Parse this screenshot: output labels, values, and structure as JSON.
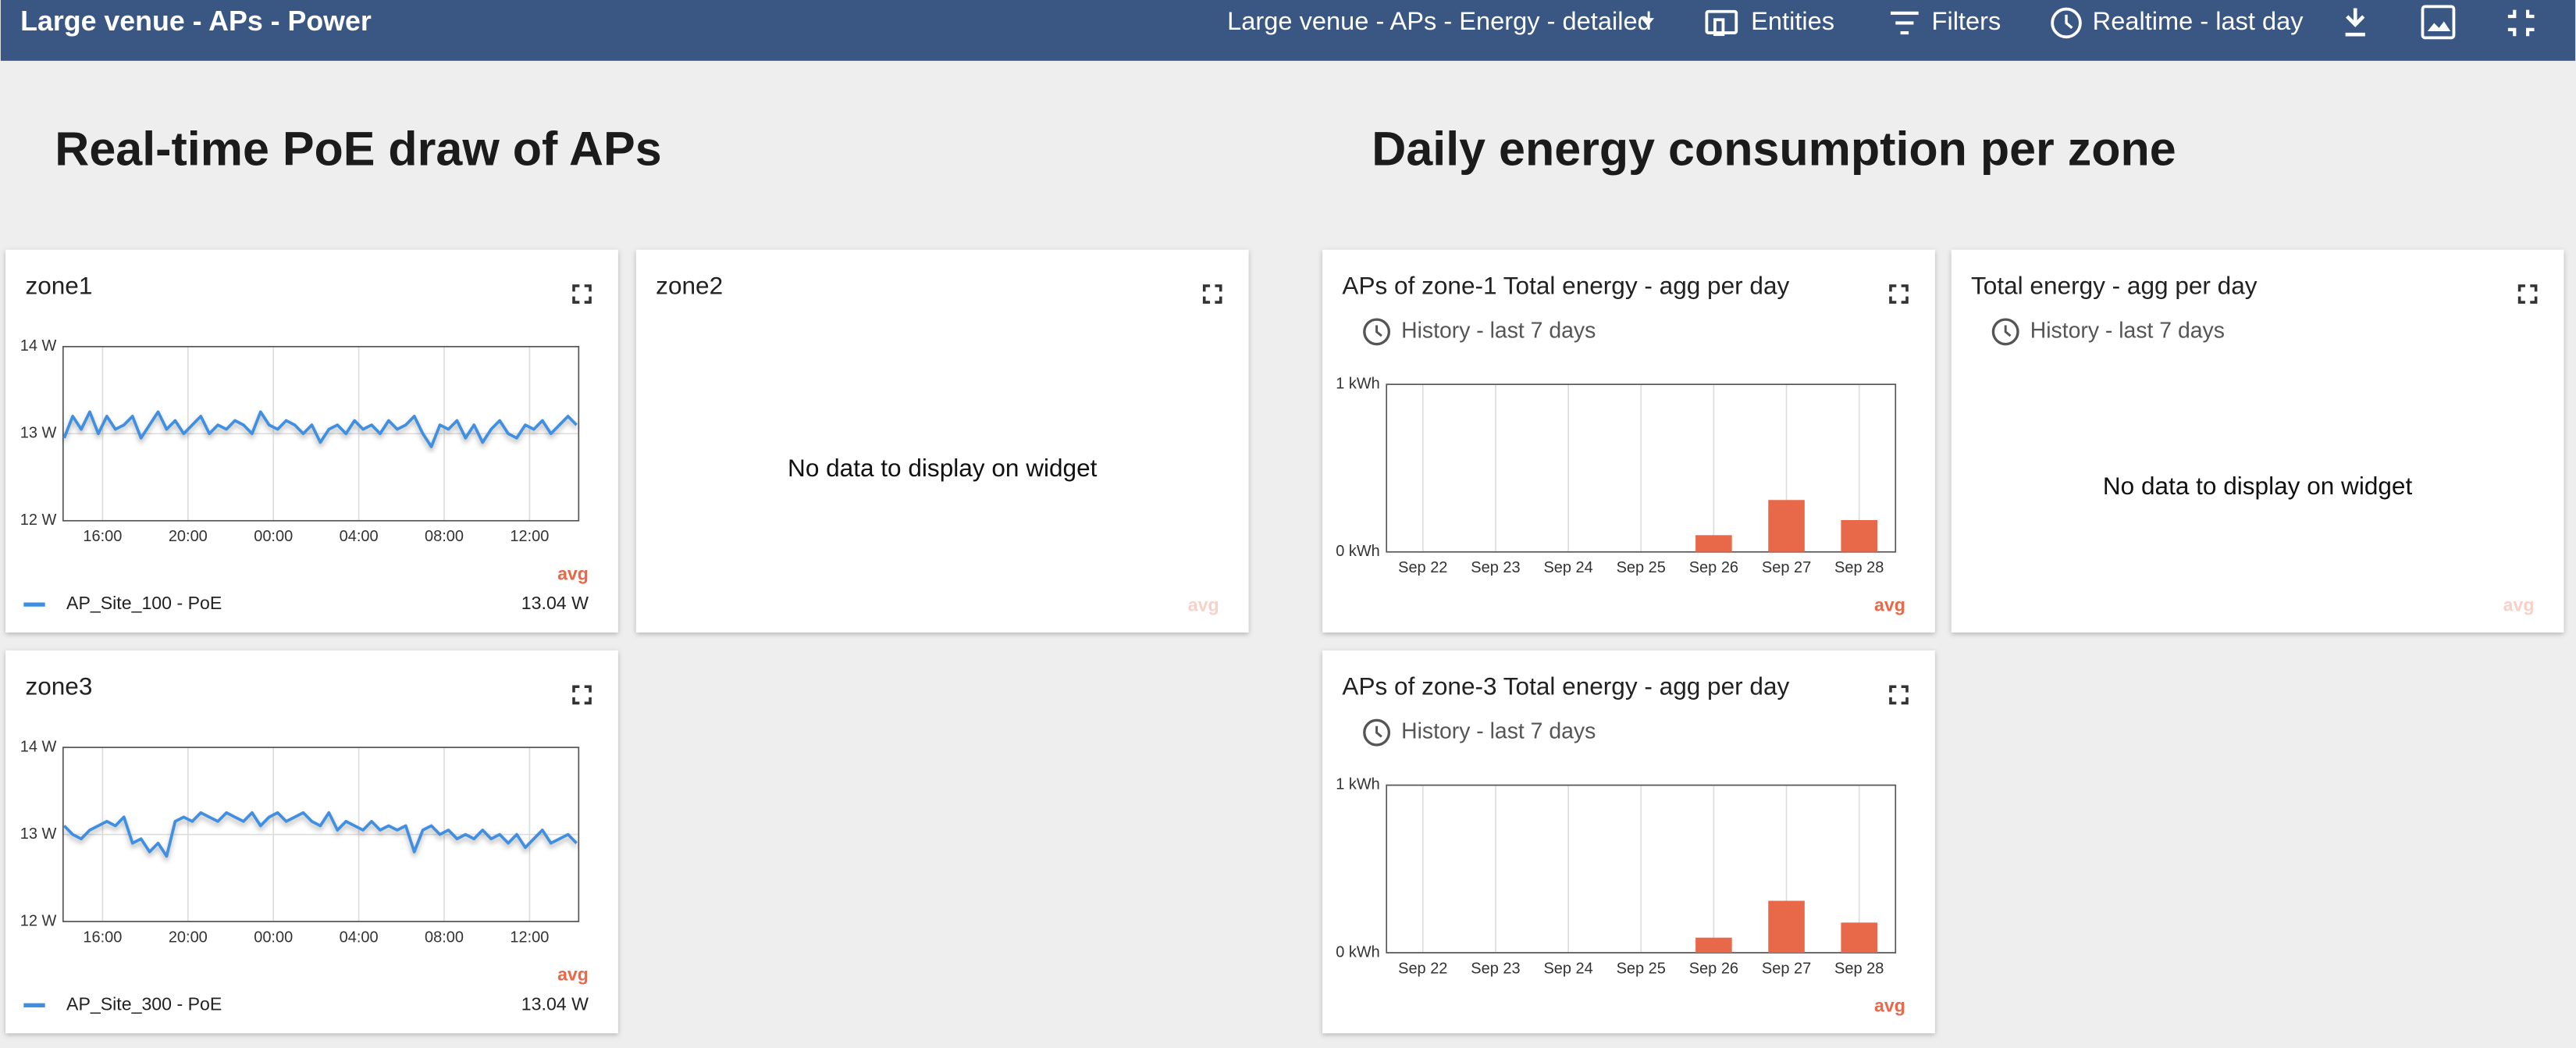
{
  "header": {
    "title": "Large venue - APs - Power",
    "state": "Large venue - APs - Energy - detailed",
    "actions": [
      "Entities",
      "Filters",
      "Realtime - last day"
    ]
  },
  "sections": [
    "Real-time PoE draw of APs",
    "Daily energy consumption per zone"
  ],
  "widgets": [
    {
      "title": "zone1",
      "legend_header": "avg",
      "chart_data": {
        "type": "line",
        "x": [
          14.2,
          14.6,
          15,
          15.4,
          15.8,
          16.2,
          16.6,
          17,
          17.4,
          17.8,
          18.2,
          18.6,
          19,
          19.4,
          19.8,
          20.2,
          20.6,
          21,
          21.4,
          21.8,
          22.2,
          22.6,
          23,
          23.4,
          23.8,
          24.2,
          24.6,
          25,
          25.4,
          25.8,
          26.2,
          26.6,
          27,
          27.4,
          27.8,
          28.2,
          28.6,
          29,
          29.4,
          29.8,
          30.2,
          30.6,
          31,
          31.4,
          31.8,
          32.2,
          32.6,
          33,
          33.4,
          33.8,
          34.2,
          34.6,
          35,
          35.4,
          35.8,
          36.2,
          36.6,
          37,
          37.4,
          37.8,
          38.2
        ],
        "xlim": [
          14.15,
          38.3
        ],
        "xticks": [
          {
            "value": 16,
            "label": "16:00"
          },
          {
            "value": 20,
            "label": "20:00"
          },
          {
            "value": 24,
            "label": "00:00"
          },
          {
            "value": 28,
            "label": "04:00"
          },
          {
            "value": 32,
            "label": "08:00"
          },
          {
            "value": 36,
            "label": "12:00"
          }
        ],
        "ylim": [
          12,
          14
        ],
        "yticks": [
          {
            "value": 12,
            "label": "12 W"
          },
          {
            "value": 13,
            "label": "13 W"
          },
          {
            "value": 14,
            "label": "14 W"
          }
        ],
        "grid": true,
        "series": [
          {
            "name": "AP_Site_100 - PoE",
            "color": "#3f8fe0",
            "legend_value": "13.04 W",
            "values": [
              12.95,
              13.2,
              13.05,
              13.25,
              13.0,
              13.2,
              13.05,
              13.1,
              13.2,
              12.95,
              13.1,
              13.25,
              13.05,
              13.15,
              13.0,
              13.1,
              13.2,
              13.0,
              13.1,
              13.05,
              13.15,
              13.1,
              13.0,
              13.25,
              13.1,
              13.05,
              13.15,
              13.1,
              13.0,
              13.1,
              12.9,
              13.05,
              13.1,
              13.0,
              13.15,
              13.05,
              13.1,
              13.0,
              13.15,
              13.05,
              13.1,
              13.2,
              13.0,
              12.85,
              13.1,
              13.05,
              13.15,
              12.95,
              13.1,
              12.9,
              13.05,
              13.15,
              13.0,
              12.95,
              13.1,
              13.05,
              13.15,
              13.0,
              13.1,
              13.2,
              13.1
            ]
          }
        ]
      }
    },
    {
      "title": "zone2",
      "legend_header": "avg",
      "message": "No data to display on widget"
    },
    {
      "title": "zone3",
      "legend_header": "avg",
      "chart_data": {
        "type": "line",
        "x": [
          14.2,
          14.6,
          15,
          15.4,
          15.8,
          16.2,
          16.6,
          17,
          17.4,
          17.8,
          18.2,
          18.6,
          19,
          19.4,
          19.8,
          20.2,
          20.6,
          21,
          21.4,
          21.8,
          22.2,
          22.6,
          23,
          23.4,
          23.8,
          24.2,
          24.6,
          25,
          25.4,
          25.8,
          26.2,
          26.6,
          27,
          27.4,
          27.8,
          28.2,
          28.6,
          29,
          29.4,
          29.8,
          30.2,
          30.6,
          31,
          31.4,
          31.8,
          32.2,
          32.6,
          33,
          33.4,
          33.8,
          34.2,
          34.6,
          35,
          35.4,
          35.8,
          36.2,
          36.6,
          37,
          37.4,
          37.8,
          38.2
        ],
        "xlim": [
          14.15,
          38.3
        ],
        "xticks": [
          {
            "value": 16,
            "label": "16:00"
          },
          {
            "value": 20,
            "label": "20:00"
          },
          {
            "value": 24,
            "label": "00:00"
          },
          {
            "value": 28,
            "label": "04:00"
          },
          {
            "value": 32,
            "label": "08:00"
          },
          {
            "value": 36,
            "label": "12:00"
          }
        ],
        "ylim": [
          12,
          14
        ],
        "yticks": [
          {
            "value": 12,
            "label": "12 W"
          },
          {
            "value": 13,
            "label": "13 W"
          },
          {
            "value": 14,
            "label": "14 W"
          }
        ],
        "grid": true,
        "series": [
          {
            "name": "AP_Site_300 - PoE",
            "color": "#3f8fe0",
            "legend_value": "13.04 W",
            "values": [
              13.1,
              13.0,
              12.95,
              13.05,
              13.1,
              13.15,
              13.1,
              13.2,
              12.9,
              12.95,
              12.8,
              12.9,
              12.75,
              13.15,
              13.2,
              13.15,
              13.25,
              13.2,
              13.15,
              13.25,
              13.2,
              13.15,
              13.25,
              13.1,
              13.2,
              13.25,
              13.15,
              13.2,
              13.25,
              13.15,
              13.1,
              13.25,
              13.05,
              13.15,
              13.1,
              13.05,
              13.15,
              13.05,
              13.1,
              13.05,
              13.1,
              12.8,
              13.05,
              13.1,
              13.0,
              13.05,
              12.95,
              13.0,
              12.95,
              13.05,
              12.95,
              13.0,
              12.9,
              13.0,
              12.85,
              12.95,
              13.05,
              12.9,
              12.95,
              13.0,
              12.9
            ]
          }
        ]
      }
    },
    {
      "title": "APs of zone-1 Total energy - agg per day",
      "subtitle": "History - last 7 days",
      "legend_header": "avg",
      "chart_data": {
        "type": "bar",
        "categories": [
          "Sep 22",
          "Sep 23",
          "Sep 24",
          "Sep 25",
          "Sep 26",
          "Sep 27",
          "Sep 28"
        ],
        "values": [
          0,
          0,
          0,
          0,
          0.1,
          0.31,
          0.19
        ],
        "color": "#e8694a",
        "ylim": [
          0,
          1
        ],
        "yticks": [
          {
            "value": 0,
            "label": "0 kWh"
          },
          {
            "value": 1,
            "label": "1 kWh"
          }
        ],
        "grid": true
      }
    },
    {
      "title": "Total energy - agg per day",
      "subtitle": "History - last 7 days",
      "legend_header": "avg",
      "message": "No data to display on widget"
    },
    {
      "title": "APs of zone-3 Total energy - agg per day",
      "subtitle": "History - last 7 days",
      "legend_header": "avg",
      "chart_data": {
        "type": "bar",
        "categories": [
          "Sep 22",
          "Sep 23",
          "Sep 24",
          "Sep 25",
          "Sep 26",
          "Sep 27",
          "Sep 28"
        ],
        "values": [
          0,
          0,
          0,
          0,
          0.09,
          0.31,
          0.18
        ],
        "color": "#e8694a",
        "ylim": [
          0,
          1
        ],
        "yticks": [
          {
            "value": 0,
            "label": "0 kWh"
          },
          {
            "value": 1,
            "label": "1 kWh"
          }
        ],
        "grid": true
      }
    }
  ]
}
